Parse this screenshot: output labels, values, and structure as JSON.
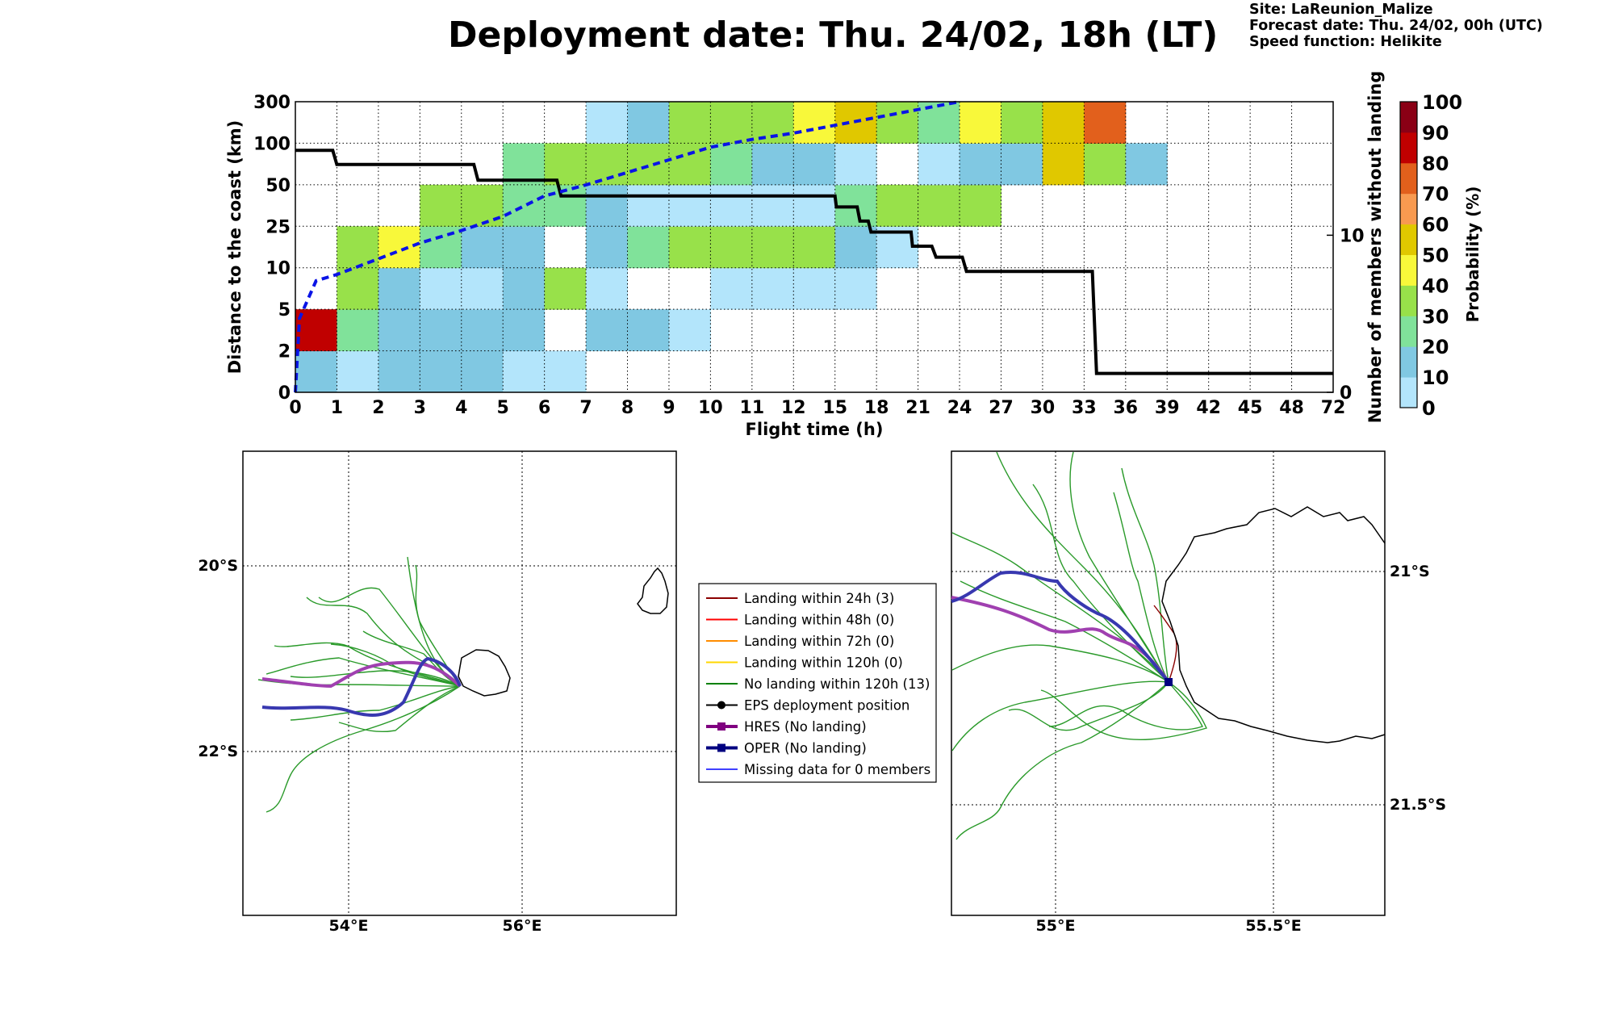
{
  "header": {
    "title": "Deployment date: Thu. 24/02, 18h (LT)",
    "meta_lines": [
      "Site: LaReunion_Malize",
      "Forecast date: Thu. 24/02, 00h (UTC)",
      "Speed function: Helikite"
    ]
  },
  "chart_data": [
    {
      "type": "heatmap",
      "xlabel": "Flight time (h)",
      "ylabel": "Distance to the coast (km)",
      "y2label": "Number of members without landing",
      "x_ticks": [
        "0",
        "1",
        "2",
        "3",
        "4",
        "5",
        "6",
        "7",
        "8",
        "9",
        "10",
        "11",
        "12",
        "15",
        "18",
        "21",
        "24",
        "27",
        "30",
        "33",
        "36",
        "39",
        "42",
        "45",
        "48",
        "72"
      ],
      "y_ticks": [
        "0",
        "2",
        "5",
        "10",
        "25",
        "50",
        "100",
        "300"
      ],
      "y2_ticks": [
        "0",
        "10"
      ],
      "y2_range": [
        0,
        18.5
      ],
      "grid": true,
      "colorbar": {
        "label": "Probability (%)",
        "ticks": [
          "0",
          "10",
          "20",
          "30",
          "40",
          "50",
          "60",
          "70",
          "80",
          "90",
          "100"
        ],
        "colors": [
          "#b3e5fb",
          "#80c8e2",
          "#80e29a",
          "#98e14a",
          "#f8f83a",
          "#e0c800",
          "#f89a50",
          "#e2601c",
          "#c00000",
          "#8a0015"
        ]
      },
      "cells": [
        [
          "#80c8e2",
          "#b3e5fb",
          "#80c8e2",
          "#80c8e2",
          "#80c8e2",
          "#b3e5fb",
          "#b3e5fb",
          null,
          null,
          null,
          null,
          null,
          null,
          null,
          null,
          null,
          null,
          null,
          null,
          null,
          null,
          null,
          null,
          null,
          null
        ],
        [
          "#c00000",
          "#80e29a",
          "#80c8e2",
          "#80c8e2",
          "#80c8e2",
          "#80c8e2",
          null,
          "#80c8e2",
          "#80c8e2",
          "#b3e5fb",
          null,
          null,
          null,
          null,
          null,
          null,
          null,
          null,
          null,
          null,
          null,
          null,
          null,
          null,
          null
        ],
        [
          null,
          "#98e14a",
          "#80c8e2",
          "#b3e5fb",
          "#b3e5fb",
          "#80c8e2",
          "#98e14a",
          "#b3e5fb",
          null,
          null,
          "#b3e5fb",
          "#b3e5fb",
          "#b3e5fb",
          "#b3e5fb",
          null,
          null,
          null,
          null,
          null,
          null,
          null,
          null,
          null,
          null,
          null
        ],
        [
          null,
          "#98e14a",
          "#f8f83a",
          "#80e29a",
          "#80c8e2",
          "#80c8e2",
          null,
          "#80c8e2",
          "#80e29a",
          "#98e14a",
          "#98e14a",
          "#98e14a",
          "#98e14a",
          "#80c8e2",
          "#b3e5fb",
          null,
          null,
          null,
          null,
          null,
          null,
          null,
          null,
          null,
          null
        ],
        [
          null,
          null,
          null,
          "#98e14a",
          "#98e14a",
          "#80e29a",
          "#80e29a",
          "#80c8e2",
          "#b3e5fb",
          "#b3e5fb",
          "#b3e5fb",
          "#b3e5fb",
          "#b3e5fb",
          "#80e29a",
          "#98e14a",
          "#98e14a",
          "#98e14a",
          null,
          null,
          null,
          null,
          null,
          null,
          null,
          null
        ],
        [
          null,
          null,
          null,
          null,
          null,
          "#80e29a",
          "#98e14a",
          "#98e14a",
          "#98e14a",
          "#98e14a",
          "#80e29a",
          "#80c8e2",
          "#80c8e2",
          "#b3e5fb",
          null,
          "#b3e5fb",
          "#80c8e2",
          "#80c8e2",
          "#e0c800",
          "#98e14a",
          "#80c8e2",
          null,
          null,
          null,
          null
        ],
        [
          null,
          null,
          null,
          null,
          null,
          null,
          null,
          "#b3e5fb",
          "#80c8e2",
          "#98e14a",
          "#98e14a",
          "#98e14a",
          "#f8f83a",
          "#e0c800",
          "#98e14a",
          "#80e29a",
          "#f8f83a",
          "#98e14a",
          "#e0c800",
          "#e2601c",
          null,
          null,
          null,
          null,
          null
        ]
      ],
      "series": [
        {
          "name": "Number of members without landing",
          "color": "#000000",
          "style": "solid",
          "points": [
            [
              0,
              15.4
            ],
            [
              0.9,
              15.4
            ],
            [
              1,
              14.5
            ],
            [
              4.3,
              14.5
            ],
            [
              4.4,
              13.5
            ],
            [
              6.3,
              13.5
            ],
            [
              6.4,
              12.5
            ],
            [
              15,
              12.5
            ],
            [
              15.1,
              11.8
            ],
            [
              16.6,
              11.8
            ],
            [
              16.8,
              10.9
            ],
            [
              17.4,
              10.9
            ],
            [
              17.6,
              10.2
            ],
            [
              20.5,
              10.2
            ],
            [
              20.6,
              9.3
            ],
            [
              22,
              9.3
            ],
            [
              22.3,
              8.6
            ],
            [
              24.2,
              8.6
            ],
            [
              24.5,
              7.7
            ],
            [
              33.6,
              7.7
            ],
            [
              33.9,
              1.2
            ],
            [
              72,
              1.2
            ]
          ]
        },
        {
          "name": "",
          "color": "#0a14e6",
          "style": "dashed",
          "points": [
            [
              0,
              0
            ],
            [
              0.1,
              4.7
            ],
            [
              0.5,
              7.1
            ],
            [
              1,
              7.5
            ],
            [
              2,
              8.5
            ],
            [
              3,
              9.5
            ],
            [
              4,
              10.3
            ],
            [
              5,
              11.2
            ],
            [
              6,
              12.5
            ],
            [
              7,
              13.2
            ],
            [
              8,
              14
            ],
            [
              9,
              14.8
            ],
            [
              10,
              15.6
            ],
            [
              11,
              16.1
            ],
            [
              12,
              16.5
            ],
            [
              15,
              17
            ],
            [
              18,
              17.5
            ],
            [
              21,
              18
            ],
            [
              24,
              18.5
            ]
          ]
        }
      ]
    },
    {
      "type": "map",
      "x_ticks": [
        "54°E",
        "56°E"
      ],
      "y_ticks": [
        "20°S",
        "22°S"
      ],
      "grid": true
    },
    {
      "type": "map",
      "x_ticks": [
        "55°E",
        "55.5°E"
      ],
      "y_ticks": [
        "21°S",
        "21.5°S"
      ],
      "grid": true
    }
  ],
  "legend": {
    "entries": [
      {
        "label": "Landing within 24h (3)",
        "color": "#8b0000",
        "marker": "line"
      },
      {
        "label": "Landing within 48h (0)",
        "color": "#ff0000",
        "marker": "line"
      },
      {
        "label": "Landing within 72h (0)",
        "color": "#ff8c00",
        "marker": "line"
      },
      {
        "label": "Landing within 120h (0)",
        "color": "#ffd700",
        "marker": "line"
      },
      {
        "label": "No landing within 120h (13)",
        "color": "#008000",
        "marker": "line"
      },
      {
        "label": "EPS deployment position",
        "color": "#000000",
        "marker": "circle"
      },
      {
        "label": "HRES (No landing)",
        "color": "#800080",
        "marker": "square"
      },
      {
        "label": "OPER (No landing)",
        "color": "#000080",
        "marker": "square"
      },
      {
        "label": "Missing data for 0 members",
        "color": "#4040ff",
        "marker": "line"
      }
    ]
  }
}
